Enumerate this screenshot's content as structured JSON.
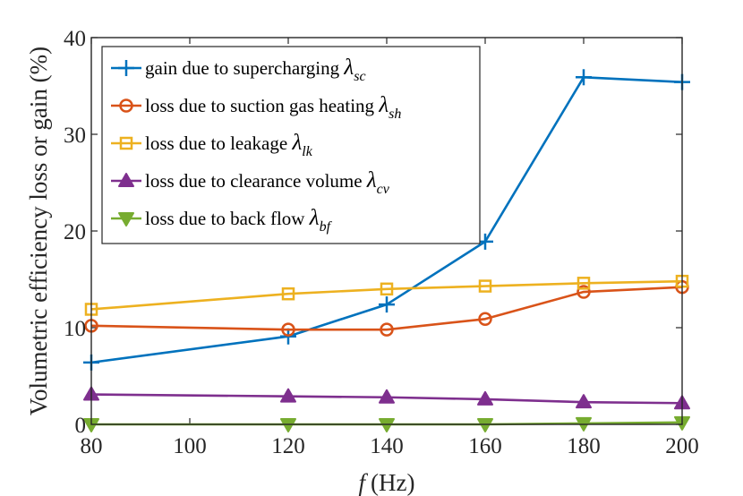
{
  "chart_data": {
    "type": "line",
    "xlabel_var": "f",
    "xlabel_unit": "(Hz)",
    "ylabel": "Volumetric efficiency loss or gain (%)",
    "xlim": [
      80,
      200
    ],
    "ylim": [
      0,
      40
    ],
    "xticks": [
      80,
      100,
      120,
      140,
      160,
      180,
      200
    ],
    "yticks": [
      0,
      10,
      20,
      30,
      40
    ],
    "x": [
      80,
      120,
      140,
      160,
      180,
      200
    ],
    "legend_position": "top-left",
    "series": [
      {
        "name": "gain due to supercharging",
        "symbol": "λ",
        "subscript": "sc",
        "marker": "plus",
        "color": "#0072BD",
        "values": [
          6.4,
          9.1,
          12.4,
          18.9,
          35.9,
          35.4
        ]
      },
      {
        "name": "loss due to suction gas heating",
        "symbol": "λ",
        "subscript": "sh",
        "marker": "circle",
        "color": "#D95319",
        "values": [
          10.2,
          9.8,
          9.8,
          10.9,
          13.7,
          14.2
        ]
      },
      {
        "name": "loss due to leakage",
        "symbol": "λ",
        "subscript": "lk",
        "marker": "square",
        "color": "#EDB120",
        "values": [
          11.9,
          13.5,
          14.0,
          14.3,
          14.6,
          14.8
        ]
      },
      {
        "name": "loss due to clearance volume",
        "symbol": "λ",
        "subscript": "cv",
        "marker": "triangle-up",
        "color": "#7E2F8E",
        "values": [
          3.1,
          2.9,
          2.8,
          2.6,
          2.3,
          2.2
        ]
      },
      {
        "name": "loss due to back flow",
        "symbol": "λ",
        "subscript": "bf",
        "marker": "triangle-down",
        "color": "#77AC30",
        "values": [
          0.0,
          0.0,
          0.0,
          0.0,
          0.1,
          0.2
        ]
      }
    ]
  }
}
